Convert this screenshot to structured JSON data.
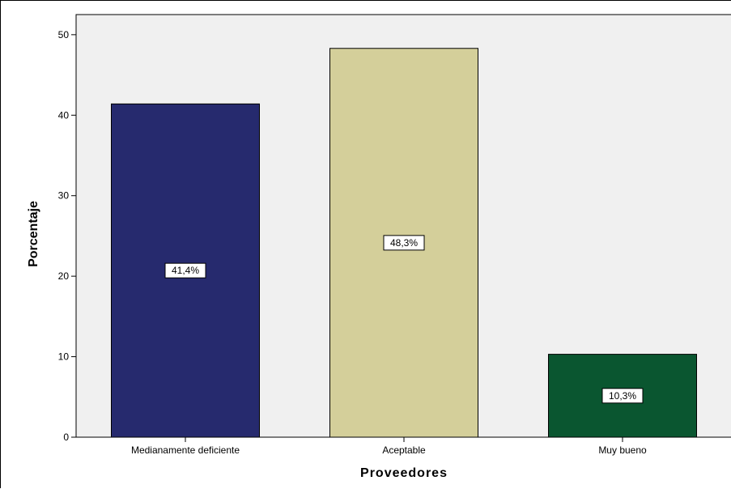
{
  "chart_data": {
    "type": "bar",
    "title": "",
    "xlabel": "Proveedores",
    "ylabel": "Porcentaje",
    "categories": [
      "Medianamente deficiente",
      "Aceptable",
      "Muy bueno"
    ],
    "values": [
      41.4,
      48.3,
      10.3
    ],
    "data_labels": [
      "41,4%",
      "48,3%",
      "10,3%"
    ],
    "bar_colors": [
      "#262a6e",
      "#d4cf9a",
      "#0a5630"
    ],
    "plot_background": "#f0f0f0",
    "ylim": [
      0,
      52.5
    ],
    "yticks": [
      0,
      10,
      20,
      30,
      40,
      50
    ],
    "grid": false,
    "legend": "none"
  }
}
